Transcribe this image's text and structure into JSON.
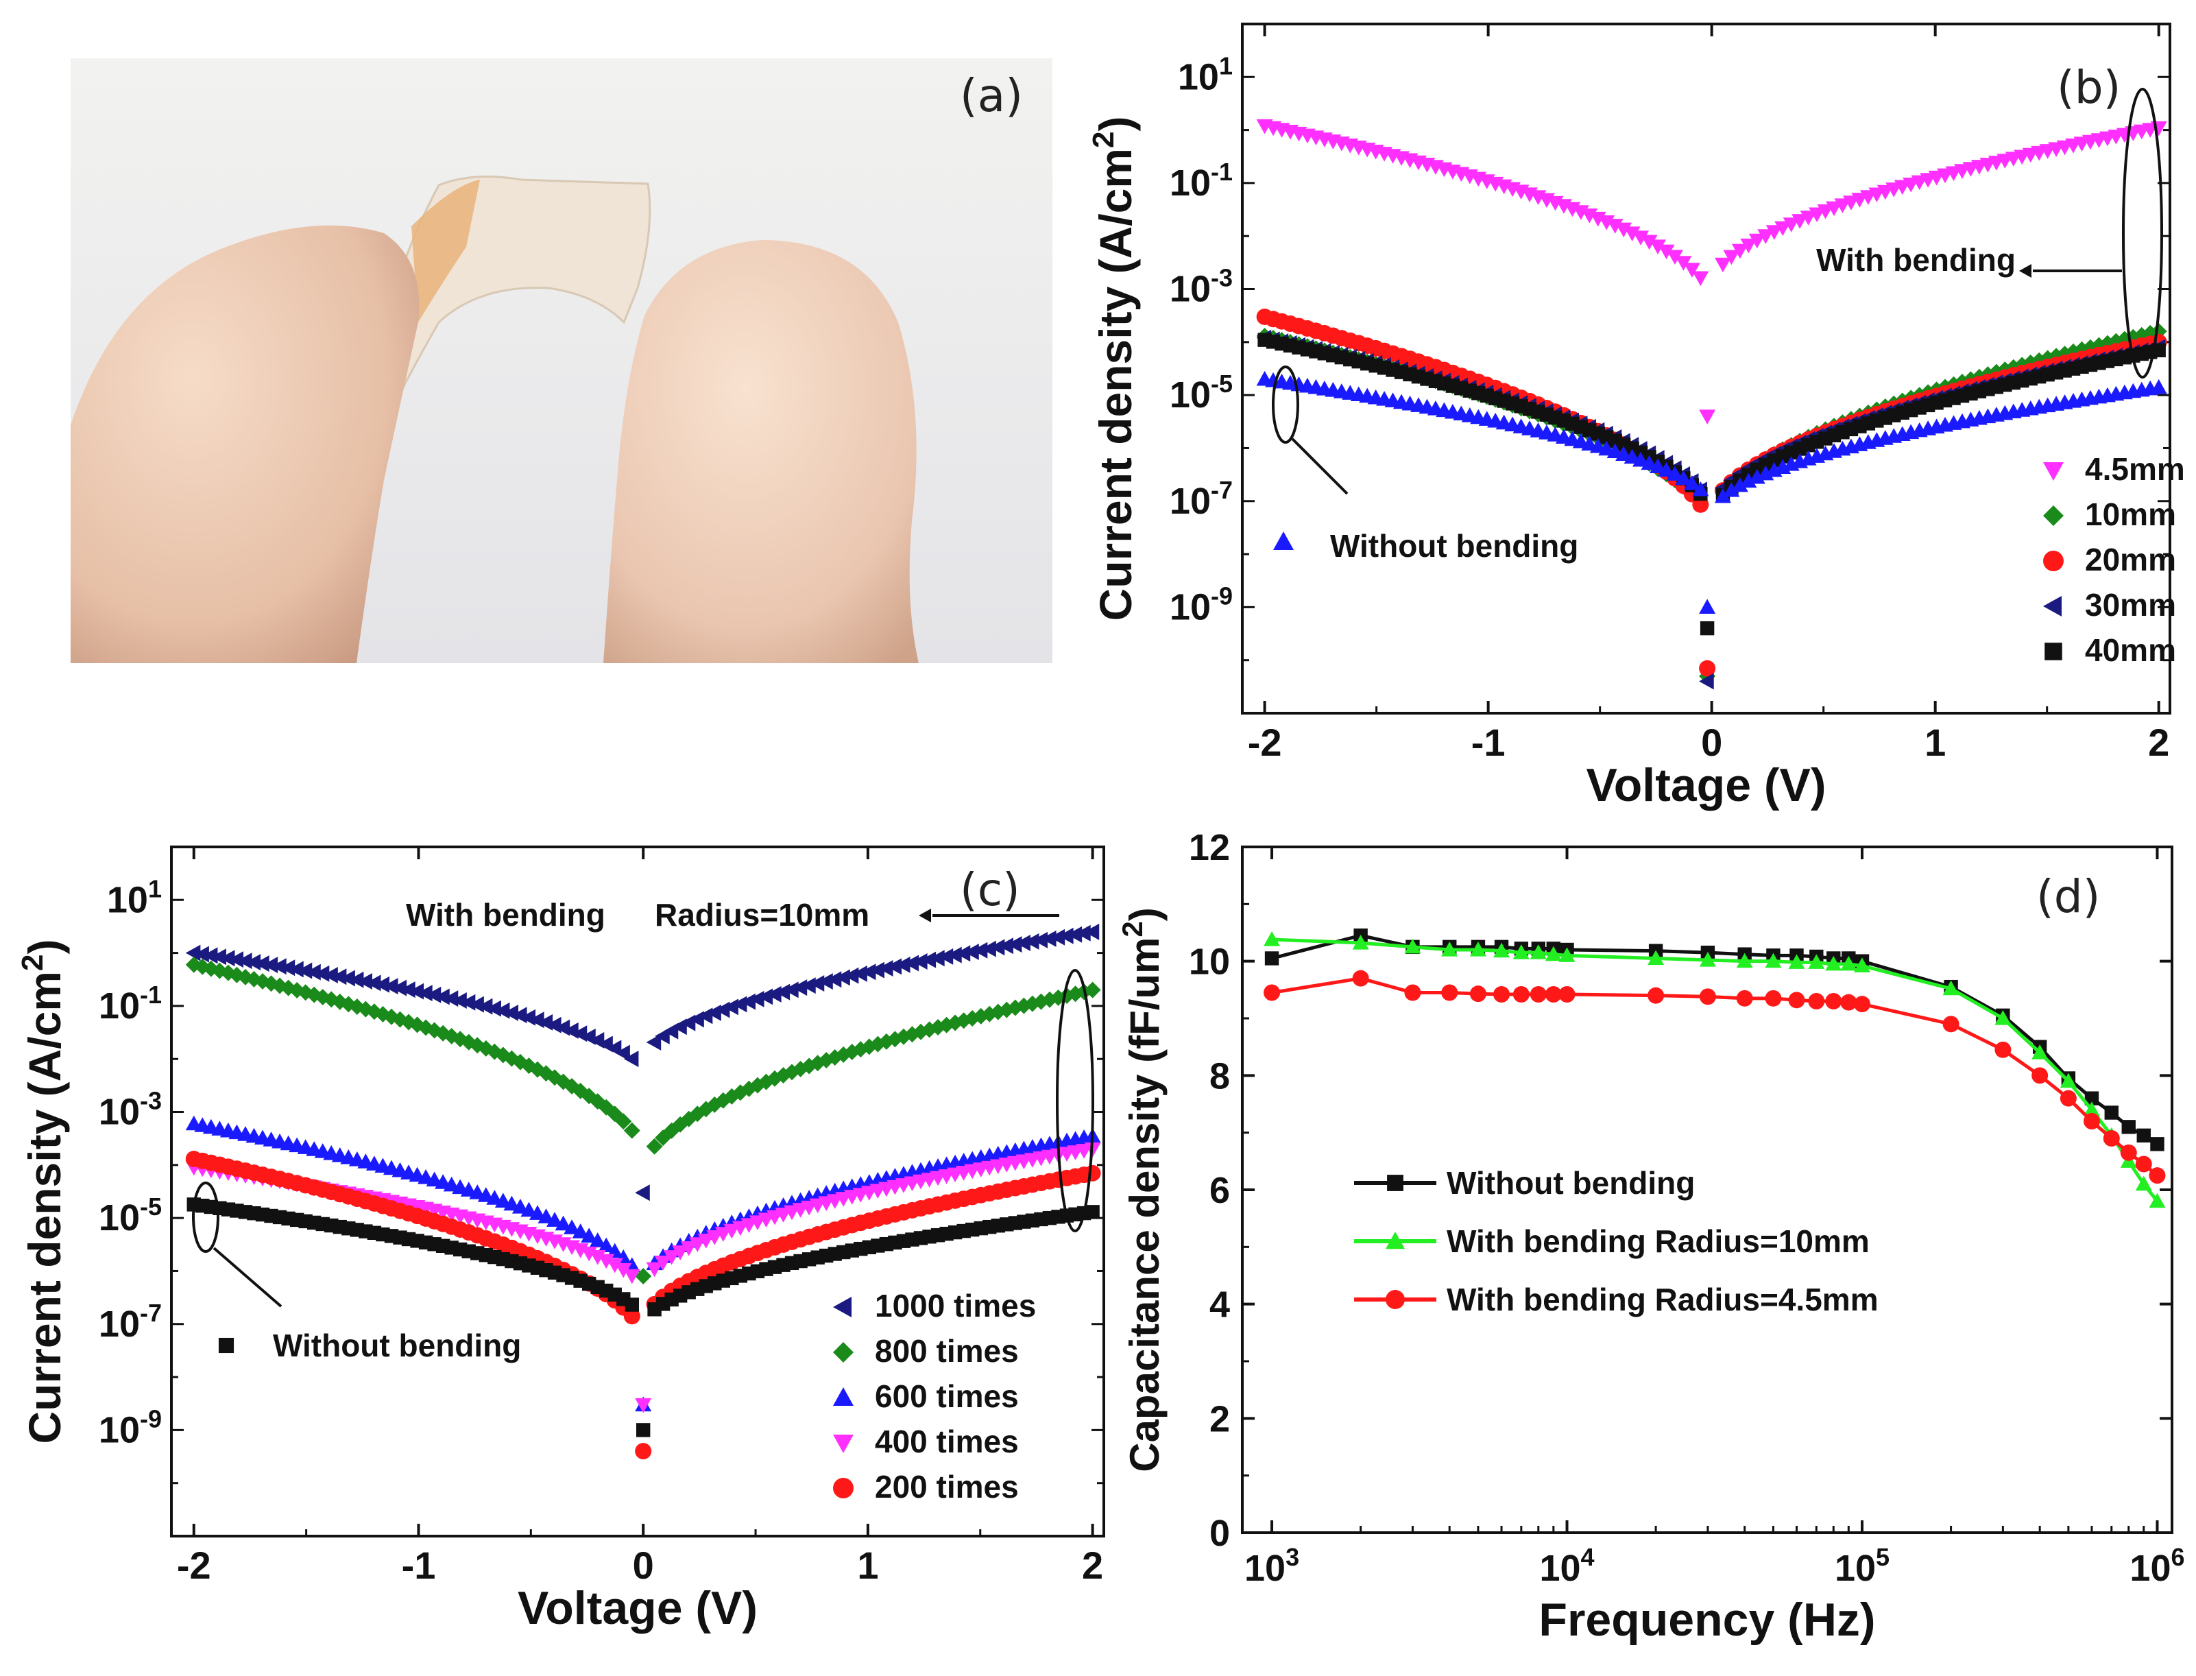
{
  "colors": {
    "magenta": "#ff30ff",
    "green": "#1a8a1a",
    "red": "#ff1818",
    "navy": "#1a1a80",
    "black": "#111111",
    "blue": "#1a1aff",
    "lime": "#22ee22"
  },
  "panel_a": {
    "label": "(a)",
    "photo": "photo-of-flexible-capacitor-bent-between-fingers"
  },
  "chart_data": [
    {
      "panel": "(b)",
      "type": "scatter",
      "yscale": "log",
      "xlabel": "Voltage (V)",
      "ylabel": "Current density (A/cm²)",
      "xlim": [
        -2.1,
        2.05
      ],
      "ylim_exp": [
        -11,
        2
      ],
      "xticks": [
        "-2",
        "-1",
        "0",
        "1",
        "2"
      ],
      "yticks_exp": [
        "1",
        "-1",
        "-3",
        "-5",
        "-7",
        "-9"
      ],
      "legend": [
        {
          "name": "4.5mm",
          "marker": "tri-down",
          "color": "magenta"
        },
        {
          "name": "10mm",
          "marker": "diamond",
          "color": "green"
        },
        {
          "name": "20mm",
          "marker": "circle",
          "color": "red"
        },
        {
          "name": "30mm",
          "marker": "tri-left",
          "color": "navy"
        },
        {
          "name": "40mm",
          "marker": "square",
          "color": "black"
        }
      ],
      "annotations": {
        "with_bending": "With bending",
        "without_bending": "Without bending"
      },
      "series": [
        {
          "name": "4.5mm",
          "marker": "tri-down",
          "color": "magenta",
          "neg_at_neg2": 1.2,
          "neg_min": 0.0006,
          "pos_min": 0.0012,
          "pos_at2": 1.1,
          "low_pt": [
            -0.02,
            4e-06
          ]
        },
        {
          "name": "10mm",
          "marker": "diamond",
          "color": "green",
          "neg_at_neg2": 0.00013,
          "neg_min": 3e-08,
          "pos_min": 5e-08,
          "pos_at2": 0.00016,
          "low_pt": [
            -0.02,
            5e-11
          ]
        },
        {
          "name": "20mm",
          "marker": "circle",
          "color": "red",
          "neg_at_neg2": 0.0003,
          "neg_min": 2.5e-08,
          "pos_min": 6e-08,
          "pos_at2": 0.0001,
          "low_pt": [
            -0.02,
            7e-11
          ]
        },
        {
          "name": "30mm",
          "marker": "tri-left",
          "color": "navy",
          "neg_at_neg2": 0.00012,
          "neg_min": 6e-08,
          "pos_min": 7e-08,
          "pos_at2": 8e-05,
          "low_pt": [
            -0.02,
            4e-11
          ]
        },
        {
          "name": "40mm",
          "marker": "square",
          "color": "black",
          "neg_at_neg2": 0.00011,
          "neg_min": 5e-08,
          "pos_min": 5e-08,
          "pos_at2": 7e-05,
          "low_pt": [
            -0.02,
            4e-10
          ]
        },
        {
          "name": "Without bending",
          "marker": "tri-up",
          "color": "blue",
          "neg_at_neg2": 2e-05,
          "neg_min": 8e-08,
          "pos_min": 6e-08,
          "pos_at2": 1.4e-05,
          "low_pt": [
            -0.02,
            1e-09
          ]
        }
      ]
    },
    {
      "panel": "(c)",
      "type": "scatter",
      "yscale": "log",
      "xlabel": "Voltage (V)",
      "ylabel": "Current density (A/cm²)",
      "xlim": [
        -2.1,
        2.05
      ],
      "ylim_exp": [
        -11,
        2
      ],
      "xticks": [
        "-2",
        "-1",
        "0",
        "1",
        "2"
      ],
      "yticks_exp": [
        "1",
        "-1",
        "-3",
        "-5",
        "-7",
        "-9"
      ],
      "legend": [
        {
          "name": "1000 times",
          "marker": "tri-left",
          "color": "navy"
        },
        {
          "name": "800 times",
          "marker": "diamond",
          "color": "green"
        },
        {
          "name": "600 times",
          "marker": "tri-up",
          "color": "blue"
        },
        {
          "name": "400 times",
          "marker": "tri-down",
          "color": "magenta"
        },
        {
          "name": "200 times",
          "marker": "circle",
          "color": "red"
        }
      ],
      "annotations": {
        "with_bending": "With bending",
        "radius": "Radius=10mm",
        "without_bending": "Without bending"
      },
      "series": [
        {
          "name": "1000 times",
          "marker": "tri-left",
          "color": "navy",
          "neg_at_neg2": 1.0,
          "neg_min": 0.005,
          "pos_min": 0.01,
          "pos_at2": 2.5,
          "low_pt": [
            0,
            3e-05
          ]
        },
        {
          "name": "800 times",
          "marker": "diamond",
          "color": "green",
          "neg_at_neg2": 0.6,
          "neg_min": 0.00015,
          "pos_min": 8e-05,
          "pos_at2": 0.2,
          "low_pt": [
            0,
            8e-07
          ]
        },
        {
          "name": "600 times",
          "marker": "tri-up",
          "color": "blue",
          "neg_at_neg2": 0.0006,
          "neg_min": 5e-07,
          "pos_min": 6e-07,
          "pos_at2": 0.00035,
          "low_pt": [
            0,
            3e-09
          ]
        },
        {
          "name": "400 times",
          "marker": "tri-down",
          "color": "magenta",
          "neg_at_neg2": 9e-05,
          "neg_min": 4e-07,
          "pos_min": 5e-07,
          "pos_at2": 0.0002,
          "low_pt": [
            0,
            3e-09
          ]
        },
        {
          "name": "200 times",
          "marker": "circle",
          "color": "red",
          "neg_at_neg2": 0.00013,
          "neg_min": 5e-08,
          "pos_min": 1e-07,
          "pos_at2": 7e-05,
          "low_pt": [
            0,
            4e-10
          ]
        },
        {
          "name": "Without bending",
          "marker": "square",
          "color": "black",
          "neg_at_neg2": 1.8e-05,
          "neg_min": 1.2e-07,
          "pos_min": 1e-07,
          "pos_at2": 1.3e-05,
          "low_pt": [
            0,
            1e-09
          ]
        }
      ]
    },
    {
      "panel": "(d)",
      "type": "line",
      "xscale": "log",
      "xlabel": "Frequency (Hz)",
      "ylabel": "Capacitance density (fF/um²)",
      "xlim_exp": [
        2.9,
        6.05
      ],
      "ylim": [
        0,
        12
      ],
      "xticks_exp": [
        "3",
        "4",
        "5",
        "6"
      ],
      "yticks": [
        "0",
        "2",
        "4",
        "6",
        "8",
        "10",
        "12"
      ],
      "series": [
        {
          "name": "Without bending",
          "color": "black",
          "marker": "square",
          "x": [
            1000,
            2000,
            3000,
            4000,
            5000,
            6000,
            7000,
            8000,
            9000,
            10000,
            20000,
            30000,
            40000,
            50000,
            60000,
            70000,
            80000,
            90000,
            100000,
            200000,
            300000,
            400000,
            500000,
            600000,
            700000,
            800000,
            900000,
            1000000
          ],
          "y": [
            10.05,
            10.45,
            10.25,
            10.25,
            10.25,
            10.25,
            10.22,
            10.22,
            10.22,
            10.2,
            10.18,
            10.15,
            10.12,
            10.1,
            10.1,
            10.08,
            10.05,
            10.05,
            10.0,
            9.55,
            9.05,
            8.5,
            7.95,
            7.6,
            7.35,
            7.1,
            6.95,
            6.8
          ]
        },
        {
          "name": "With bending Radius=10mm",
          "color": "lime",
          "marker": "tri-up",
          "x": [
            1000,
            2000,
            3000,
            4000,
            5000,
            6000,
            7000,
            8000,
            9000,
            10000,
            20000,
            30000,
            40000,
            50000,
            60000,
            70000,
            80000,
            90000,
            100000,
            200000,
            300000,
            400000,
            500000,
            600000,
            700000,
            800000,
            900000,
            1000000
          ],
          "y": [
            10.38,
            10.32,
            10.25,
            10.2,
            10.2,
            10.18,
            10.15,
            10.15,
            10.12,
            10.1,
            10.05,
            10.02,
            10.0,
            10.0,
            9.98,
            9.98,
            9.95,
            9.95,
            9.92,
            9.52,
            9.0,
            8.4,
            7.9,
            7.4,
            6.95,
            6.5,
            6.1,
            5.8
          ]
        },
        {
          "name": "With bending Radius=4.5mm",
          "color": "red",
          "marker": "circle",
          "x": [
            1000,
            2000,
            3000,
            4000,
            5000,
            6000,
            7000,
            8000,
            9000,
            10000,
            20000,
            30000,
            40000,
            50000,
            60000,
            70000,
            80000,
            90000,
            100000,
            200000,
            300000,
            400000,
            500000,
            600000,
            700000,
            800000,
            900000,
            1000000
          ],
          "y": [
            9.45,
            9.7,
            9.45,
            9.45,
            9.43,
            9.42,
            9.42,
            9.42,
            9.42,
            9.42,
            9.4,
            9.38,
            9.35,
            9.35,
            9.32,
            9.3,
            9.3,
            9.28,
            9.25,
            8.9,
            8.45,
            8.0,
            7.6,
            7.2,
            6.9,
            6.65,
            6.45,
            6.25
          ]
        }
      ]
    }
  ]
}
